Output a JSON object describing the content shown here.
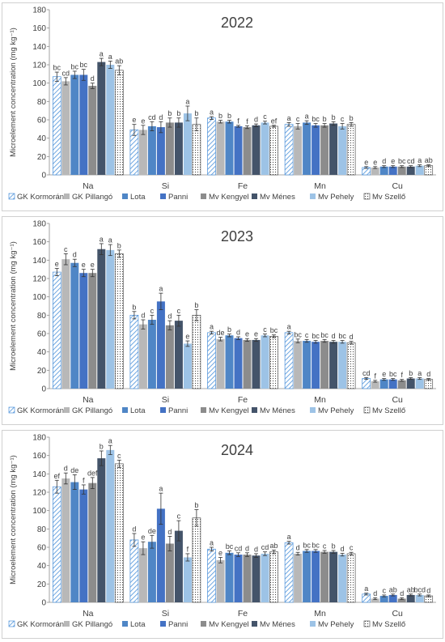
{
  "chart_data": [
    {
      "type": "bar",
      "title": "2022",
      "ylabel": "Microelement concentration (mg kg⁻¹)",
      "ylim": [
        0,
        180
      ],
      "yticks": [
        "0",
        "20",
        "40",
        "60",
        "80",
        "100",
        "120",
        "140",
        "160",
        "180"
      ],
      "categories": [
        "Na",
        "Si",
        "Fe",
        "Mn",
        "Cu"
      ],
      "series": [
        {
          "name": "GK Kormorán",
          "values": [
            107,
            49,
            62,
            55,
            8
          ],
          "errors": [
            5,
            6,
            1.5,
            2,
            1
          ],
          "letters": [
            "bc",
            "e",
            "a",
            "a",
            "e"
          ]
        },
        {
          "name": "GK Pillangó",
          "values": [
            102,
            49,
            58,
            53,
            8
          ],
          "errors": [
            4,
            5,
            1.5,
            3,
            1
          ],
          "letters": [
            "cd",
            "e",
            "b",
            "c",
            "e"
          ]
        },
        {
          "name": "Lota",
          "values": [
            109,
            53,
            58,
            57,
            9
          ],
          "errors": [
            4,
            5,
            1.5,
            2,
            1
          ],
          "letters": [
            "bc",
            "cd",
            "b",
            "a",
            "d"
          ]
        },
        {
          "name": "Panni",
          "values": [
            109,
            52,
            53,
            54,
            9
          ],
          "errors": [
            6,
            6,
            1,
            2,
            1
          ],
          "letters": [
            "bc",
            "d",
            "f",
            "bc",
            "e"
          ]
        },
        {
          "name": "Mv Kengyel",
          "values": [
            97,
            57,
            52,
            54,
            9
          ],
          "errors": [
            3,
            5,
            1.5,
            2,
            1
          ],
          "letters": [
            "d",
            "b",
            "f",
            "b",
            "bc"
          ]
        },
        {
          "name": "Mv Ménes",
          "values": [
            123,
            57,
            54,
            56,
            9
          ],
          "errors": [
            4,
            5,
            1.5,
            2,
            1
          ],
          "letters": [
            "a",
            "b",
            "d",
            "b",
            "cd"
          ]
        },
        {
          "name": "Mv Pehely",
          "values": [
            120,
            67,
            57,
            53,
            10
          ],
          "errors": [
            4,
            8,
            1.5,
            3,
            1
          ],
          "letters": [
            "a",
            "a",
            "c",
            "c",
            "a"
          ]
        },
        {
          "name": "Mv Szellő",
          "values": [
            114,
            55,
            53,
            55,
            10
          ],
          "errors": [
            5,
            7,
            1,
            2,
            1
          ],
          "letters": [
            "ab",
            "b",
            "ef",
            "b",
            "ab"
          ]
        }
      ],
      "legend_position": "bottom"
    },
    {
      "type": "bar",
      "title": "2023",
      "ylabel": "Microelement concentration (mg kg⁻¹)",
      "ylim": [
        0,
        180
      ],
      "yticks": [
        "0",
        "20",
        "40",
        "60",
        "80",
        "100",
        "120",
        "140",
        "160",
        "180"
      ],
      "categories": [
        "Na",
        "Si",
        "Fe",
        "Mn",
        "Cu"
      ],
      "series": [
        {
          "name": "GK Kormorán",
          "values": [
            127,
            80,
            61,
            61,
            11
          ],
          "errors": [
            4,
            4,
            1.5,
            1.5,
            1
          ],
          "letters": [
            "e",
            "b",
            "a",
            "a",
            "cd"
          ]
        },
        {
          "name": "GK Pillangó",
          "values": [
            141,
            70,
            54,
            52,
            8
          ],
          "errors": [
            6,
            5,
            2,
            2,
            1
          ],
          "letters": [
            "c",
            "d",
            "de",
            "bc",
            "f"
          ]
        },
        {
          "name": "Lota",
          "values": [
            137,
            75,
            58,
            52,
            10
          ],
          "errors": [
            4,
            5,
            1.5,
            1.5,
            1
          ],
          "letters": [
            "d",
            "c",
            "b",
            "c",
            "e"
          ]
        },
        {
          "name": "Panni",
          "values": [
            126,
            95,
            55,
            51,
            10
          ],
          "errors": [
            4,
            9,
            1.5,
            1.5,
            1
          ],
          "letters": [
            "e",
            "a",
            "d",
            "bc",
            "bc"
          ]
        },
        {
          "name": "Mv Kengyel",
          "values": [
            126,
            69,
            53,
            52,
            9
          ],
          "errors": [
            4,
            5,
            1.5,
            1.5,
            1
          ],
          "letters": [
            "e",
            "d",
            "e",
            "bc",
            "f"
          ]
        },
        {
          "name": "Mv Ménes",
          "values": [
            152,
            74,
            53,
            51,
            11
          ],
          "errors": [
            6,
            6,
            1.5,
            1.5,
            1
          ],
          "letters": [
            "a",
            "c",
            "e",
            "d",
            "b"
          ]
        },
        {
          "name": "Mv Pehely",
          "values": [
            151,
            49,
            58,
            51,
            11
          ],
          "errors": [
            6,
            3,
            1.5,
            1.5,
            1
          ],
          "letters": [
            "a",
            "e",
            "c",
            "bc",
            "a"
          ]
        },
        {
          "name": "Mv Szellő",
          "values": [
            147,
            80,
            57,
            50,
            10
          ],
          "errors": [
            4,
            6,
            1.5,
            1.5,
            1
          ],
          "letters": [
            "b",
            "b",
            "bc",
            "d",
            "d"
          ]
        }
      ],
      "legend_position": "bottom"
    },
    {
      "type": "bar",
      "title": "2024",
      "ylabel": "Microelement concentration (mg kg⁻¹)",
      "ylim": [
        0,
        180
      ],
      "yticks": [
        "0",
        "20",
        "40",
        "60",
        "80",
        "100",
        "120",
        "140",
        "160",
        "180"
      ],
      "categories": [
        "Na",
        "Si",
        "Fe",
        "Mn",
        "Cu"
      ],
      "series": [
        {
          "name": "GK Kormorán",
          "values": [
            126,
            68,
            58,
            65,
            9
          ],
          "errors": [
            7,
            7,
            2,
            1.5,
            1
          ],
          "letters": [
            "ef",
            "d",
            "a",
            "a",
            "a"
          ]
        },
        {
          "name": "GK Pillangó",
          "values": [
            135,
            59,
            46,
            53,
            4
          ],
          "errors": [
            6,
            7,
            3,
            1.5,
            1
          ],
          "letters": [
            "d",
            "e",
            "e",
            "d",
            "d"
          ]
        },
        {
          "name": "Lota",
          "values": [
            131,
            66,
            54,
            56,
            7
          ],
          "errors": [
            8,
            7,
            2,
            1.5,
            1
          ],
          "letters": [
            "de",
            "de",
            "bc",
            "bc",
            "c"
          ]
        },
        {
          "name": "Panni",
          "values": [
            123,
            102,
            52,
            56,
            8
          ],
          "errors": [
            5,
            17,
            2,
            1.5,
            1
          ],
          "letters": [
            "f",
            "a",
            "cd",
            "bc",
            "ab"
          ]
        },
        {
          "name": "Mv Kengyel",
          "values": [
            130,
            64,
            52,
            55,
            4
          ],
          "errors": [
            6,
            8,
            2,
            1.5,
            1
          ],
          "letters": [
            "def",
            "d",
            "d",
            "c",
            "d"
          ]
        },
        {
          "name": "Mv Ménes",
          "values": [
            157,
            78,
            51,
            55,
            8
          ],
          "errors": [
            8,
            11,
            2,
            1.5,
            1
          ],
          "letters": [
            "b",
            "c",
            "d",
            "b",
            "ab"
          ]
        },
        {
          "name": "Mv Pehely",
          "values": [
            166,
            49,
            53,
            52,
            8
          ],
          "errors": [
            5,
            4,
            2,
            1.5,
            1
          ],
          "letters": [
            "a",
            "f",
            "cd",
            "d",
            "bcd"
          ]
        },
        {
          "name": "Mv Szellő",
          "values": [
            151,
            92,
            55,
            53,
            7
          ],
          "errors": [
            4,
            9,
            2,
            1.5,
            1
          ],
          "letters": [
            "c",
            "b",
            "ab",
            "c",
            "d"
          ]
        }
      ],
      "legend_position": "bottom"
    }
  ],
  "colors": {
    "GK Kormorán": "#5b9bd5",
    "GK Pillangó": "#b8b8b8",
    "Lota": "#4f86c6",
    "Panni": "#4472c4",
    "Mv Kengyel": "#8c8c8c",
    "Mv Ménes": "#44546a",
    "Mv Pehely": "#9dc3e6",
    "Mv Szellő": "#ffffff"
  }
}
